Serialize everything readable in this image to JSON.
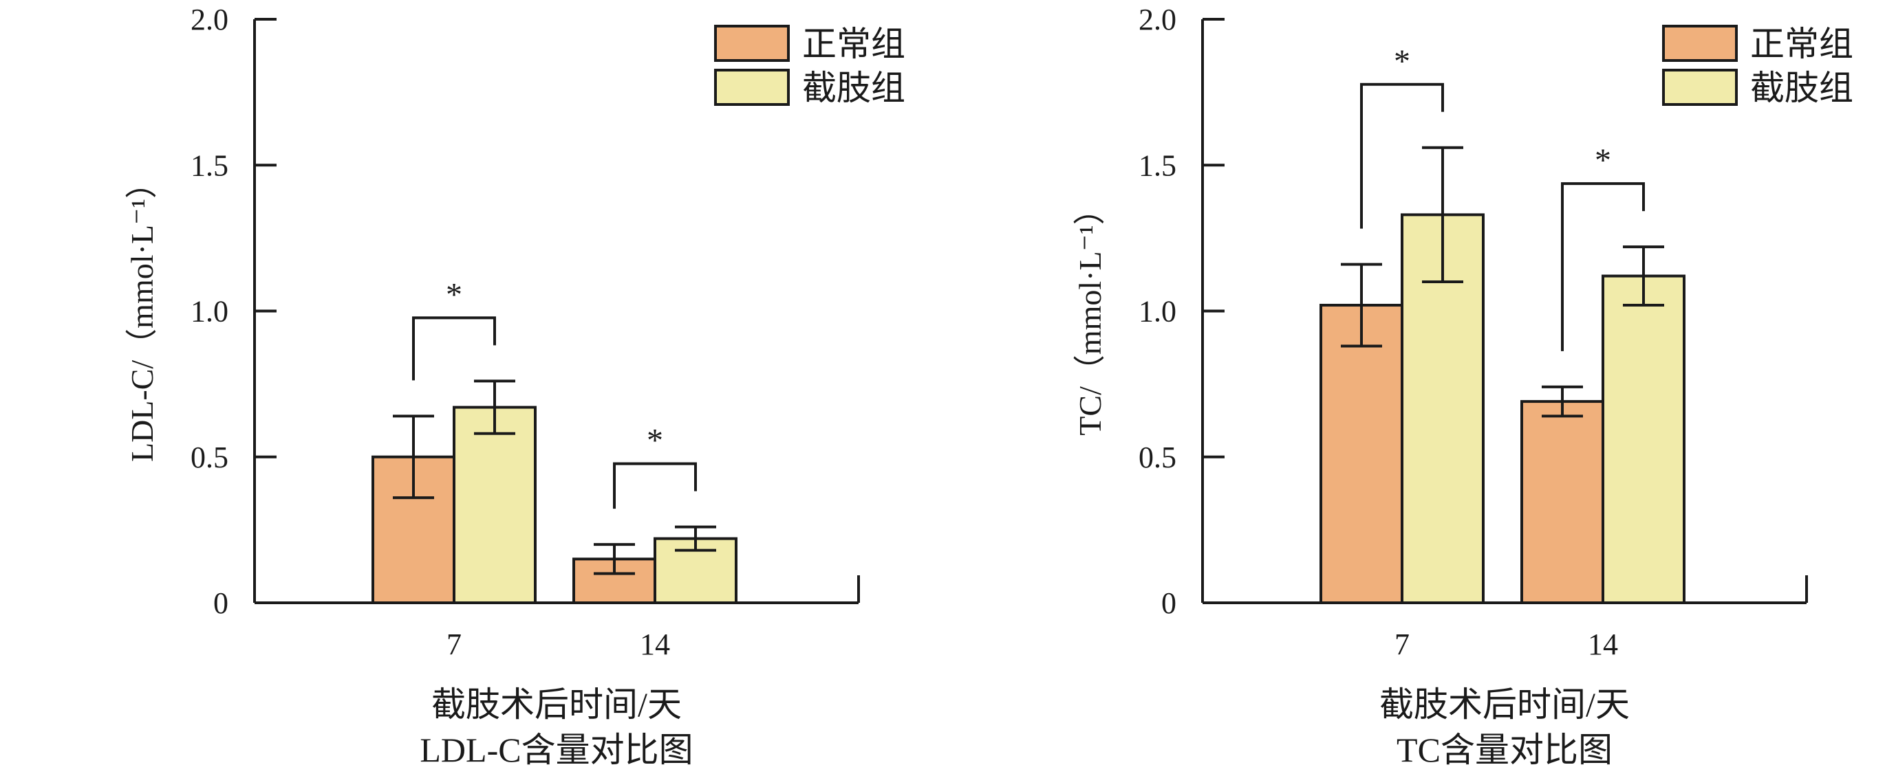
{
  "chart_data": [
    {
      "type": "bar",
      "title": "",
      "categories": [
        "7",
        "14"
      ],
      "series": [
        {
          "name": "正常组",
          "color": "#f0b07c",
          "values": [
            0.5,
            0.15
          ],
          "errors": [
            0.14,
            0.05
          ]
        },
        {
          "name": "截肢组",
          "color": "#f1ebaa",
          "values": [
            0.67,
            0.22
          ],
          "errors": [
            0.09,
            0.04
          ]
        }
      ],
      "ylabel": "LDL-C/（mmol·L⁻¹）",
      "xlabel": "截肢术后时间/天",
      "caption": "LDL-C含量对比图",
      "ylim": [
        0,
        2.0
      ],
      "yticks": [
        "0",
        "0.5",
        "1.0",
        "1.5",
        "2.0"
      ],
      "significance": [
        {
          "category": "7",
          "label": "*"
        },
        {
          "category": "14",
          "label": "*"
        }
      ],
      "legend": "top-right",
      "grid": false
    },
    {
      "type": "bar",
      "title": "",
      "categories": [
        "7",
        "14"
      ],
      "series": [
        {
          "name": "正常组",
          "color": "#f0b07c",
          "values": [
            1.02,
            0.69
          ],
          "errors": [
            0.14,
            0.05
          ]
        },
        {
          "name": "截肢组",
          "color": "#f1ebaa",
          "values": [
            1.33,
            1.12
          ],
          "errors": [
            0.23,
            0.1
          ]
        }
      ],
      "ylabel": "TC/（mmol·L⁻¹）",
      "xlabel": "截肢术后时间/天",
      "caption": "TC含量对比图",
      "ylim": [
        0,
        2.0
      ],
      "yticks": [
        "0",
        "0.5",
        "1.0",
        "1.5",
        "2.0"
      ],
      "significance": [
        {
          "category": "7",
          "label": "*"
        },
        {
          "category": "14",
          "label": "*"
        }
      ],
      "legend": "top-right",
      "grid": false
    }
  ]
}
